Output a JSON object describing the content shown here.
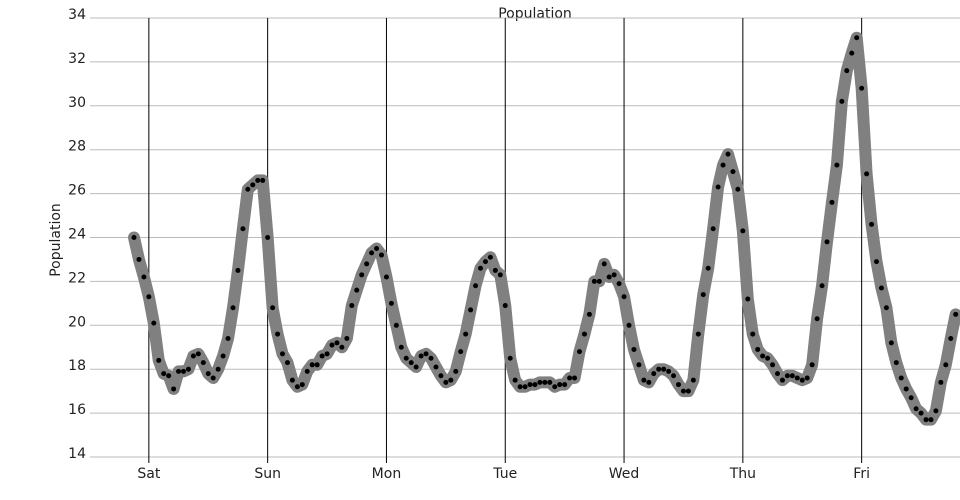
{
  "chart_data": {
    "type": "line",
    "title": "Population",
    "y_label": "Population",
    "categories": [
      null,
      null,
      null,
      "Sat",
      null,
      null,
      null,
      null,
      null,
      null,
      null,
      null,
      null,
      null,
      null,
      null,
      null,
      null,
      null,
      null,
      null,
      null,
      null,
      null,
      null,
      null,
      null,
      "Sun",
      null,
      null,
      null,
      null,
      null,
      null,
      null,
      null,
      null,
      null,
      null,
      null,
      null,
      null,
      null,
      null,
      null,
      null,
      null,
      null,
      null,
      null,
      null,
      "Mon",
      null,
      null,
      null,
      null,
      null,
      null,
      null,
      null,
      null,
      null,
      null,
      null,
      null,
      null,
      null,
      null,
      null,
      null,
      null,
      null,
      null,
      null,
      null,
      "Tue",
      null,
      null,
      null,
      null,
      null,
      null,
      null,
      null,
      null,
      null,
      null,
      null,
      null,
      null,
      null,
      null,
      null,
      null,
      null,
      null,
      null,
      null,
      null,
      "Wed",
      null,
      null,
      null,
      null,
      null,
      null,
      null,
      null,
      null,
      null,
      null,
      null,
      null,
      null,
      null,
      null,
      null,
      null,
      null,
      null,
      null,
      null,
      null,
      "Thu",
      null,
      null,
      null,
      null,
      null,
      null,
      null,
      null,
      null,
      null,
      null,
      null,
      null,
      null,
      null,
      null,
      null,
      null,
      null,
      null,
      null,
      null,
      null,
      "Fri",
      null,
      null,
      null,
      null,
      null,
      null,
      null,
      null,
      null,
      null,
      null,
      null,
      null,
      null,
      null,
      null,
      null,
      null,
      null
    ],
    "values": [
      24.0,
      23.0,
      22.2,
      21.3,
      20.1,
      18.4,
      17.8,
      17.7,
      17.1,
      17.9,
      17.9,
      18.0,
      18.6,
      18.7,
      18.3,
      17.8,
      17.6,
      18.0,
      18.6,
      19.4,
      20.8,
      22.5,
      24.4,
      26.2,
      26.4,
      26.6,
      26.6,
      24.0,
      20.8,
      19.6,
      18.7,
      18.3,
      17.5,
      17.2,
      17.3,
      17.9,
      18.2,
      18.2,
      18.6,
      18.7,
      19.1,
      19.2,
      19.0,
      19.4,
      20.9,
      21.6,
      22.3,
      22.8,
      23.3,
      23.5,
      23.2,
      22.2,
      21.0,
      20.0,
      19.0,
      18.5,
      18.3,
      18.1,
      18.6,
      18.7,
      18.5,
      18.1,
      17.7,
      17.4,
      17.5,
      17.9,
      18.8,
      19.6,
      20.7,
      21.8,
      22.6,
      22.9,
      23.1,
      22.5,
      22.3,
      20.9,
      18.5,
      17.5,
      17.2,
      17.2,
      17.3,
      17.3,
      17.4,
      17.4,
      17.4,
      17.2,
      17.3,
      17.3,
      17.6,
      17.6,
      18.8,
      19.6,
      20.5,
      22.0,
      22.0,
      22.8,
      22.2,
      22.3,
      21.9,
      21.3,
      20.0,
      18.9,
      18.2,
      17.5,
      17.4,
      17.8,
      18.0,
      18.0,
      17.9,
      17.7,
      17.3,
      17.0,
      17.0,
      17.5,
      19.6,
      21.4,
      22.6,
      24.4,
      26.3,
      27.3,
      27.8,
      27.0,
      26.2,
      24.3,
      21.2,
      19.6,
      18.9,
      18.6,
      18.5,
      18.2,
      17.8,
      17.5,
      17.7,
      17.7,
      17.6,
      17.5,
      17.6,
      18.2,
      20.3,
      21.8,
      23.8,
      25.6,
      27.3,
      30.2,
      31.6,
      32.4,
      33.1,
      30.8,
      26.9,
      24.6,
      22.9,
      21.7,
      20.8,
      19.2,
      18.3,
      17.6,
      17.1,
      16.7,
      16.2,
      16.0,
      15.7,
      15.7,
      16.1,
      17.4,
      18.2,
      19.4,
      20.5
    ],
    "color": "#808080",
    "marker_color": "#000000",
    "ylim": [
      14,
      34
    ],
    "yticks": [
      14,
      16,
      18,
      20,
      22,
      24,
      26,
      28,
      30,
      32,
      34
    ],
    "grid": true
  }
}
